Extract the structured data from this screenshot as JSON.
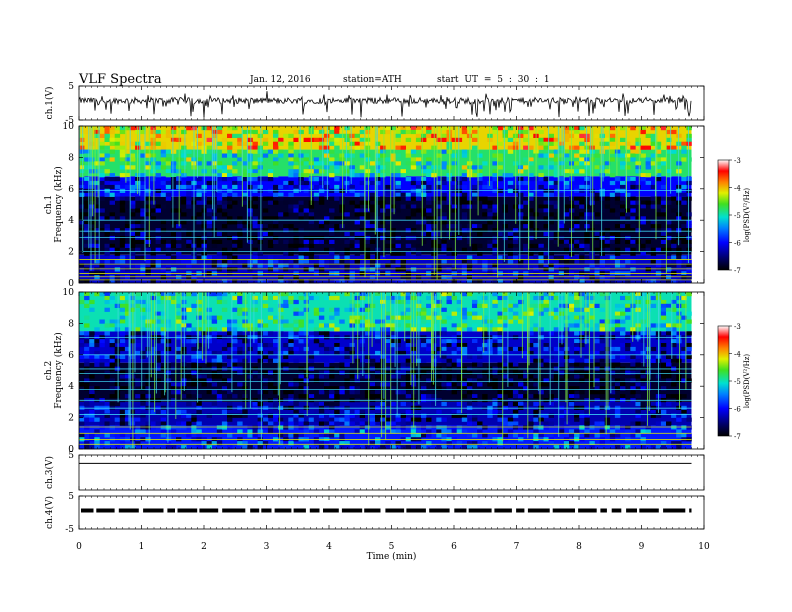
{
  "header": {
    "title": "VLF  Spectra",
    "date": "Jan. 12, 2016",
    "station": "station=ATH",
    "start": "start  UT  =   5  : 30 : 1"
  },
  "chart_data": [
    {
      "type": "line",
      "panel": "ch1-waveform",
      "ylabel": "ch.1(V)",
      "ylim": [
        -5,
        5
      ],
      "yticks": [
        5,
        -5
      ],
      "xlim": [
        0,
        10
      ],
      "x_end": 9.8,
      "description_series": "noisy waveform centered near +0.7 V with frequent negative spikes",
      "baseline": 0.7,
      "color": "#000000"
    },
    {
      "type": "heatmap",
      "panel": "ch1-spectrogram",
      "ylabel_lines": [
        "ch.1",
        "Frequency  (kHz)"
      ],
      "ylim": [
        0,
        10
      ],
      "yticks": [
        0,
        2,
        4,
        6,
        8,
        10
      ],
      "xlim": [
        0,
        10
      ],
      "x_end": 9.8,
      "colorbar": {
        "label": "log(PSD(V²/Hz)",
        "range": [
          -7,
          -3
        ],
        "ticks": [
          -3,
          -4,
          -5,
          -6,
          -7
        ]
      },
      "bands_kHz": [
        {
          "from": 0,
          "to": 1.8,
          "level": -6.2
        },
        {
          "from": 1.8,
          "to": 5.5,
          "level": -6.8
        },
        {
          "from": 5.5,
          "to": 6.8,
          "level": -6.0
        },
        {
          "from": 6.8,
          "to": 8.5,
          "level": -4.8
        },
        {
          "from": 8.5,
          "to": 10,
          "level": -4.1
        }
      ],
      "lines_kHz": [
        0.2,
        0.4,
        0.6,
        0.9,
        1.2,
        1.5,
        2.0,
        2.9,
        3.3,
        4.0,
        5.9
      ]
    },
    {
      "type": "heatmap",
      "panel": "ch2-spectrogram",
      "ylabel_lines": [
        "ch.2",
        "Frequency  (kHz)"
      ],
      "ylim": [
        0,
        10
      ],
      "yticks": [
        0,
        2,
        4,
        6,
        8,
        10
      ],
      "xlim": [
        0,
        10
      ],
      "x_end": 9.8,
      "colorbar": {
        "label": "log(PSD(V²/Hz)",
        "range": [
          -7,
          -3
        ],
        "ticks": [
          -3,
          -4,
          -5,
          -6,
          -7
        ]
      },
      "bands_kHz": [
        {
          "from": 0,
          "to": 1.5,
          "level": -5.9
        },
        {
          "from": 1.5,
          "to": 3.0,
          "level": -6.3
        },
        {
          "from": 3.0,
          "to": 5.5,
          "level": -6.8
        },
        {
          "from": 5.5,
          "to": 7.5,
          "level": -6.2
        },
        {
          "from": 7.5,
          "to": 10,
          "level": -5.0
        }
      ],
      "lines_kHz": [
        0.3,
        0.6,
        1.0,
        1.4,
        2.2,
        2.6,
        3.1,
        3.8,
        4.3,
        4.8,
        5.1,
        6.0,
        7.1
      ]
    },
    {
      "type": "line",
      "panel": "ch3-waveform",
      "ylabel": "ch.3(V)",
      "ylim": [
        -5,
        5
      ],
      "yticks": [
        5
      ],
      "xlim": [
        0,
        10
      ],
      "x_end": 9.8,
      "baseline": 2.6,
      "color": "#000000"
    },
    {
      "type": "line",
      "panel": "ch4-waveform",
      "ylabel": "ch.4(V)",
      "ylim": [
        -5,
        5
      ],
      "yticks": [
        5,
        -5
      ],
      "xlim": [
        0,
        10
      ],
      "x_end": 9.8,
      "baseline": 0.6,
      "color": "#000000"
    }
  ],
  "x_axis": {
    "label": "Time  (min)",
    "ticks": [
      "0",
      "1",
      "2",
      "3",
      "4",
      "5",
      "6",
      "7",
      "8",
      "9",
      "10"
    ]
  }
}
